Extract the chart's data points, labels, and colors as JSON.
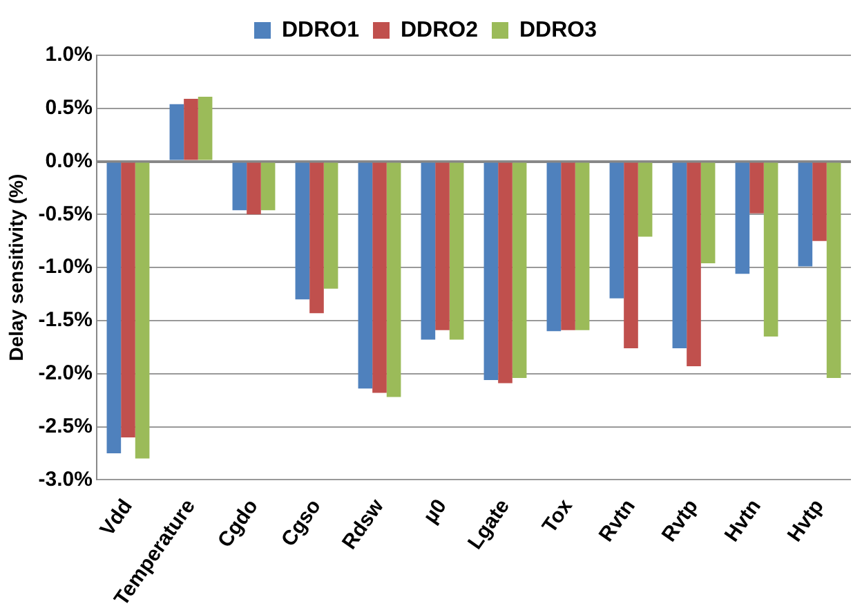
{
  "chart_data": {
    "type": "bar",
    "ylabel": "Delay sensitivity (%)",
    "categories": [
      "Vdd",
      "Temperature",
      "Cgdo",
      "Cgso",
      "Rdsw",
      "µ0",
      "Lgate",
      "Tox",
      "Rvtn",
      "Rvtp",
      "Hvtn",
      "Hvtp"
    ],
    "series": [
      {
        "name": "DDRO1",
        "color": "#4f81bd",
        "values": [
          -2.75,
          0.54,
          -0.46,
          -1.3,
          -2.14,
          -1.68,
          -2.06,
          -1.6,
          -1.29,
          -1.76,
          -1.06,
          -0.99
        ]
      },
      {
        "name": "DDRO2",
        "color": "#c0504d",
        "values": [
          -2.6,
          0.59,
          -0.5,
          -1.43,
          -2.18,
          -1.59,
          -2.09,
          -1.59,
          -1.76,
          -1.93,
          -0.49,
          -0.75
        ]
      },
      {
        "name": "DDRO3",
        "color": "#9bbb59",
        "values": [
          -2.8,
          0.61,
          -0.46,
          -1.2,
          -2.22,
          -1.68,
          -2.04,
          -1.59,
          -0.71,
          -0.96,
          -1.65,
          -2.04
        ]
      }
    ],
    "ylim": [
      -3,
      1
    ],
    "yticks": [
      {
        "value": -3,
        "label": "-3.0%"
      },
      {
        "value": -2.5,
        "label": "-2.5%"
      },
      {
        "value": -2,
        "label": "-2.0%"
      },
      {
        "value": -1.5,
        "label": "-1.5%"
      },
      {
        "value": -1,
        "label": "-1.0%"
      },
      {
        "value": -0.5,
        "label": "-0.5%"
      },
      {
        "value": 0,
        "label": "0.0%"
      },
      {
        "value": 0.5,
        "label": "0.5%"
      },
      {
        "value": 1,
        "label": "1.0%"
      }
    ],
    "grid": "y",
    "legend": "top"
  }
}
